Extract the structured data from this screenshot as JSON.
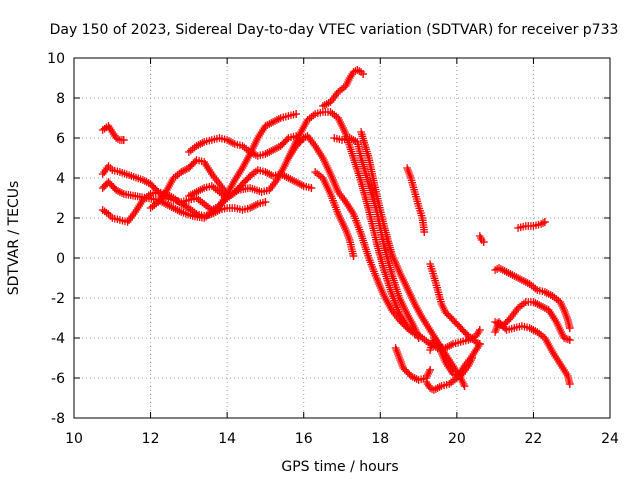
{
  "chart_data": {
    "type": "scatter",
    "title": "Day 150 of 2023, Sidereal Day-to-day VTEC variation (SDTVAR) for receiver p733",
    "xlabel": "GPS time / hours",
    "ylabel": "SDTVAR / TECUs",
    "xlim": [
      10,
      24
    ],
    "ylim": [
      -8,
      10
    ],
    "xticks": [
      10,
      12,
      14,
      16,
      18,
      20,
      22,
      24
    ],
    "yticks": [
      -8,
      -6,
      -4,
      -2,
      0,
      2,
      4,
      6,
      8,
      10
    ],
    "grid": true,
    "marker": "+",
    "color": "#ff0000",
    "series": [
      {
        "name": "s1",
        "points": [
          [
            10.75,
            6.4
          ],
          [
            10.9,
            6.6
          ],
          [
            11.0,
            6.3
          ],
          [
            11.1,
            6.0
          ],
          [
            11.2,
            5.9
          ],
          [
            11.3,
            5.9
          ]
        ]
      },
      {
        "name": "s2",
        "points": [
          [
            10.75,
            4.2
          ],
          [
            10.9,
            4.6
          ],
          [
            11.0,
            4.4
          ],
          [
            11.2,
            4.3
          ],
          [
            11.5,
            4.1
          ],
          [
            11.8,
            3.9
          ],
          [
            12.0,
            3.7
          ],
          [
            12.2,
            3.3
          ],
          [
            12.4,
            3.0
          ],
          [
            12.6,
            2.9
          ],
          [
            12.8,
            2.8
          ],
          [
            13.0,
            2.9
          ],
          [
            13.2,
            3.0
          ],
          [
            13.4,
            2.7
          ],
          [
            13.6,
            2.4
          ],
          [
            13.8,
            2.6
          ],
          [
            14.0,
            3.2
          ],
          [
            14.2,
            3.9
          ],
          [
            14.4,
            4.5
          ],
          [
            14.6,
            5.2
          ],
          [
            14.8,
            6.0
          ],
          [
            15.0,
            6.6
          ],
          [
            15.2,
            6.8
          ],
          [
            15.4,
            7.0
          ],
          [
            15.6,
            7.1
          ],
          [
            15.8,
            7.2
          ]
        ]
      },
      {
        "name": "s3",
        "points": [
          [
            10.75,
            3.5
          ],
          [
            10.9,
            3.8
          ],
          [
            11.1,
            3.4
          ],
          [
            11.3,
            3.2
          ],
          [
            11.6,
            3.1
          ],
          [
            11.9,
            3.0
          ],
          [
            12.2,
            2.9
          ],
          [
            12.5,
            2.6
          ],
          [
            12.8,
            2.3
          ],
          [
            13.1,
            2.1
          ],
          [
            13.4,
            2.0
          ],
          [
            13.7,
            2.4
          ],
          [
            14.0,
            3.0
          ],
          [
            14.3,
            3.4
          ],
          [
            14.6,
            3.5
          ],
          [
            14.9,
            3.3
          ],
          [
            15.1,
            3.4
          ],
          [
            15.3,
            3.9
          ],
          [
            15.5,
            4.6
          ],
          [
            15.7,
            5.4
          ],
          [
            15.9,
            6.2
          ],
          [
            16.1,
            6.9
          ],
          [
            16.3,
            7.2
          ],
          [
            16.5,
            7.3
          ],
          [
            16.7,
            7.3
          ],
          [
            16.9,
            7.0
          ],
          [
            17.1,
            6.2
          ],
          [
            17.3,
            5.0
          ],
          [
            17.5,
            3.8
          ],
          [
            17.7,
            2.4
          ],
          [
            17.9,
            0.8
          ],
          [
            18.1,
            -0.6
          ],
          [
            18.3,
            -1.8
          ],
          [
            18.5,
            -2.8
          ],
          [
            18.7,
            -3.4
          ],
          [
            18.9,
            -3.7
          ],
          [
            19.1,
            -4.0
          ],
          [
            19.3,
            -4.3
          ],
          [
            19.5,
            -4.5
          ],
          [
            19.7,
            -4.5
          ],
          [
            19.9,
            -4.3
          ],
          [
            20.1,
            -4.2
          ],
          [
            20.3,
            -4.1
          ],
          [
            20.5,
            -3.9
          ],
          [
            20.6,
            -3.6
          ]
        ]
      },
      {
        "name": "s4",
        "points": [
          [
            10.75,
            2.4
          ],
          [
            10.9,
            2.2
          ],
          [
            11.0,
            2.0
          ],
          [
            11.2,
            1.9
          ],
          [
            11.4,
            1.8
          ],
          [
            11.6,
            2.3
          ],
          [
            11.8,
            2.9
          ],
          [
            12.0,
            3.2
          ],
          [
            12.2,
            3.3
          ],
          [
            12.4,
            3.2
          ],
          [
            12.6,
            3.0
          ],
          [
            12.8,
            2.7
          ],
          [
            13.0,
            2.5
          ],
          [
            13.2,
            2.2
          ],
          [
            13.4,
            2.1
          ],
          [
            13.6,
            2.2
          ],
          [
            13.8,
            2.4
          ],
          [
            14.0,
            2.5
          ],
          [
            14.2,
            2.5
          ],
          [
            14.4,
            2.4
          ],
          [
            14.6,
            2.5
          ],
          [
            14.8,
            2.7
          ],
          [
            15.0,
            2.8
          ]
        ]
      },
      {
        "name": "s5",
        "points": [
          [
            12.0,
            2.5
          ],
          [
            12.2,
            2.8
          ],
          [
            12.4,
            3.3
          ],
          [
            12.6,
            4.0
          ],
          [
            12.8,
            4.3
          ],
          [
            13.0,
            4.5
          ],
          [
            13.2,
            4.9
          ],
          [
            13.4,
            4.8
          ],
          [
            13.6,
            4.2
          ],
          [
            13.8,
            3.7
          ],
          [
            14.0,
            3.2
          ]
        ]
      },
      {
        "name": "s6",
        "points": [
          [
            13.0,
            5.3
          ],
          [
            13.2,
            5.6
          ],
          [
            13.4,
            5.8
          ],
          [
            13.6,
            5.9
          ],
          [
            13.8,
            6.0
          ],
          [
            14.0,
            5.9
          ],
          [
            14.2,
            5.7
          ],
          [
            14.4,
            5.6
          ],
          [
            14.6,
            5.3
          ],
          [
            14.8,
            5.1
          ],
          [
            15.0,
            5.2
          ],
          [
            15.2,
            5.4
          ],
          [
            15.4,
            5.6
          ],
          [
            15.6,
            6.0
          ],
          [
            15.8,
            6.1
          ],
          [
            15.9,
            5.8
          ]
        ]
      },
      {
        "name": "s7",
        "points": [
          [
            13.0,
            3.1
          ],
          [
            13.2,
            3.3
          ],
          [
            13.4,
            3.5
          ],
          [
            13.6,
            3.6
          ],
          [
            13.8,
            3.3
          ],
          [
            14.0,
            3.0
          ],
          [
            14.2,
            3.3
          ],
          [
            14.4,
            3.7
          ],
          [
            14.6,
            4.1
          ],
          [
            14.8,
            4.4
          ],
          [
            15.0,
            4.3
          ],
          [
            15.2,
            4.1
          ],
          [
            15.4,
            4.2
          ],
          [
            15.6,
            4.0
          ],
          [
            15.8,
            3.8
          ],
          [
            16.0,
            3.6
          ],
          [
            16.2,
            3.5
          ]
        ]
      },
      {
        "name": "s8",
        "points": [
          [
            15.6,
            5.0
          ],
          [
            15.8,
            5.6
          ],
          [
            16.0,
            6.0
          ],
          [
            16.1,
            6.1
          ],
          [
            16.3,
            5.6
          ],
          [
            16.5,
            5.0
          ],
          [
            16.7,
            4.2
          ],
          [
            16.9,
            3.3
          ],
          [
            17.1,
            2.8
          ],
          [
            17.3,
            2.2
          ],
          [
            17.5,
            1.2
          ],
          [
            17.7,
            0.0
          ],
          [
            17.9,
            -1.0
          ],
          [
            18.1,
            -1.9
          ],
          [
            18.3,
            -2.6
          ],
          [
            18.5,
            -3.1
          ],
          [
            18.7,
            -3.5
          ],
          [
            18.9,
            -3.8
          ]
        ]
      },
      {
        "name": "s9",
        "points": [
          [
            16.3,
            4.3
          ],
          [
            16.5,
            4.0
          ],
          [
            16.7,
            3.2
          ],
          [
            16.9,
            2.2
          ],
          [
            17.1,
            1.4
          ],
          [
            17.2,
            0.9
          ],
          [
            17.3,
            0.1
          ]
        ]
      },
      {
        "name": "s10",
        "points": [
          [
            16.5,
            7.6
          ],
          [
            16.7,
            7.8
          ],
          [
            16.9,
            8.3
          ],
          [
            17.1,
            8.6
          ],
          [
            17.2,
            9.0
          ],
          [
            17.3,
            9.3
          ],
          [
            17.4,
            9.4
          ],
          [
            17.5,
            9.3
          ],
          [
            17.55,
            9.2
          ]
        ]
      },
      {
        "name": "s11",
        "points": [
          [
            16.8,
            6.0
          ],
          [
            17.0,
            5.9
          ],
          [
            17.2,
            6.0
          ],
          [
            17.4,
            5.8
          ],
          [
            17.5,
            5.0
          ],
          [
            17.7,
            3.7
          ],
          [
            17.9,
            2.4
          ],
          [
            18.1,
            0.6
          ],
          [
            18.3,
            -0.8
          ],
          [
            18.5,
            -2.0
          ],
          [
            18.7,
            -2.8
          ],
          [
            18.9,
            -3.5
          ],
          [
            19.0,
            -4.0
          ]
        ]
      },
      {
        "name": "s12",
        "points": [
          [
            17.5,
            6.3
          ],
          [
            17.7,
            5.0
          ],
          [
            17.9,
            3.2
          ],
          [
            18.1,
            1.6
          ],
          [
            18.3,
            0.2
          ],
          [
            18.5,
            -0.7
          ],
          [
            18.7,
            -1.5
          ],
          [
            18.9,
            -2.3
          ],
          [
            19.1,
            -3.0
          ],
          [
            19.3,
            -3.6
          ],
          [
            19.5,
            -4.2
          ],
          [
            19.7,
            -4.8
          ],
          [
            19.9,
            -5.4
          ],
          [
            20.1,
            -6.0
          ],
          [
            20.2,
            -6.4
          ]
        ]
      },
      {
        "name": "s13",
        "points": [
          [
            18.7,
            4.5
          ],
          [
            18.8,
            4.0
          ],
          [
            18.9,
            3.3
          ],
          [
            19.0,
            2.6
          ],
          [
            19.1,
            2.0
          ],
          [
            19.15,
            1.3
          ]
        ]
      },
      {
        "name": "s14",
        "points": [
          [
            18.4,
            -4.5
          ],
          [
            18.5,
            -5.0
          ],
          [
            18.6,
            -5.5
          ],
          [
            18.8,
            -5.9
          ],
          [
            19.0,
            -6.1
          ],
          [
            19.2,
            -6.0
          ],
          [
            19.3,
            -5.6
          ]
        ]
      },
      {
        "name": "s15",
        "points": [
          [
            19.3,
            -0.3
          ],
          [
            19.4,
            -0.9
          ],
          [
            19.5,
            -1.6
          ],
          [
            19.6,
            -2.3
          ],
          [
            19.7,
            -2.7
          ],
          [
            19.9,
            -3.1
          ],
          [
            20.1,
            -3.5
          ],
          [
            20.3,
            -3.9
          ],
          [
            20.5,
            -4.2
          ],
          [
            20.6,
            -4.3
          ]
        ]
      },
      {
        "name": "s16",
        "points": [
          [
            19.2,
            -6.2
          ],
          [
            19.3,
            -6.5
          ],
          [
            19.4,
            -6.6
          ],
          [
            19.6,
            -6.4
          ],
          [
            19.8,
            -6.3
          ],
          [
            20.0,
            -6.0
          ],
          [
            20.2,
            -5.4
          ],
          [
            20.4,
            -4.9
          ],
          [
            20.5,
            -4.6
          ],
          [
            20.6,
            -4.3
          ]
        ]
      },
      {
        "name": "s17",
        "points": [
          [
            19.3,
            -4.6
          ],
          [
            19.4,
            -4.0
          ],
          [
            19.5,
            -4.3
          ],
          [
            19.7,
            -5.2
          ],
          [
            19.9,
            -5.8
          ],
          [
            20.1,
            -5.9
          ],
          [
            20.3,
            -5.4
          ],
          [
            20.4,
            -5.0
          ]
        ]
      },
      {
        "name": "s18",
        "points": [
          [
            20.6,
            1.1
          ],
          [
            20.65,
            0.9
          ],
          [
            20.7,
            0.8
          ]
        ]
      },
      {
        "name": "s19",
        "points": [
          [
            21.0,
            -0.6
          ],
          [
            21.1,
            -0.5
          ],
          [
            21.3,
            -0.7
          ],
          [
            21.5,
            -0.9
          ],
          [
            21.7,
            -1.1
          ],
          [
            21.9,
            -1.3
          ],
          [
            22.1,
            -1.6
          ],
          [
            22.3,
            -1.7
          ],
          [
            22.5,
            -1.9
          ],
          [
            22.7,
            -2.2
          ],
          [
            22.8,
            -2.6
          ],
          [
            22.9,
            -3.1
          ],
          [
            22.95,
            -3.5
          ]
        ]
      },
      {
        "name": "s20",
        "points": [
          [
            21.0,
            -3.7
          ],
          [
            21.1,
            -3.2
          ],
          [
            21.3,
            -3.6
          ],
          [
            21.5,
            -3.5
          ],
          [
            21.7,
            -3.4
          ],
          [
            21.9,
            -3.5
          ],
          [
            22.1,
            -3.7
          ],
          [
            22.3,
            -4.0
          ],
          [
            22.5,
            -4.7
          ],
          [
            22.7,
            -5.3
          ],
          [
            22.9,
            -5.9
          ],
          [
            22.95,
            -6.3
          ]
        ]
      },
      {
        "name": "s21",
        "points": [
          [
            21.0,
            -3.2
          ],
          [
            21.2,
            -3.4
          ],
          [
            21.4,
            -3.0
          ],
          [
            21.6,
            -2.5
          ],
          [
            21.8,
            -2.2
          ],
          [
            22.0,
            -2.2
          ],
          [
            22.2,
            -2.4
          ],
          [
            22.4,
            -2.6
          ],
          [
            22.6,
            -3.2
          ],
          [
            22.8,
            -4.0
          ],
          [
            22.95,
            -4.1
          ]
        ]
      },
      {
        "name": "s22",
        "points": [
          [
            21.6,
            1.5
          ],
          [
            21.8,
            1.6
          ],
          [
            22.0,
            1.6
          ],
          [
            22.2,
            1.7
          ],
          [
            22.3,
            1.8
          ]
        ]
      }
    ]
  }
}
